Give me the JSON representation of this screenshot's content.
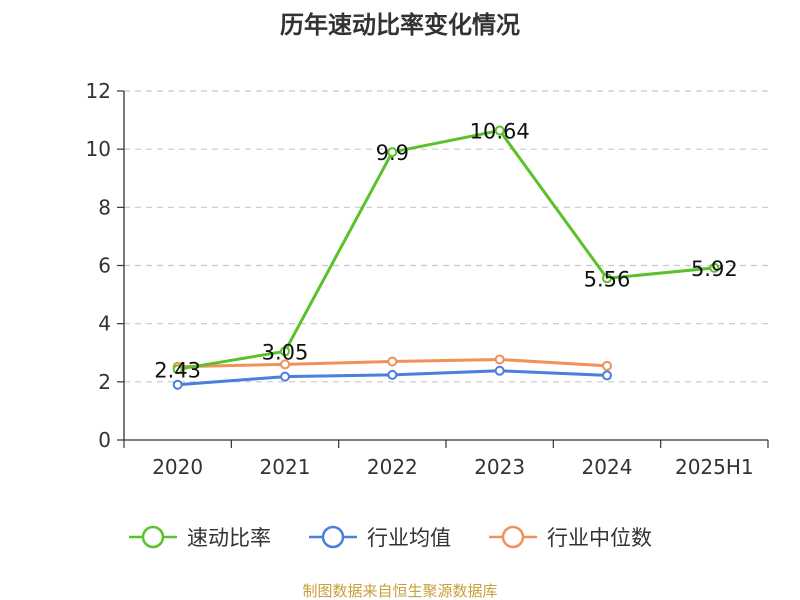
{
  "chart_data": {
    "type": "line",
    "title": "历年速动比率变化情况",
    "categories": [
      "2020",
      "2021",
      "2022",
      "2023",
      "2024",
      "2025H1"
    ],
    "ylim": [
      0,
      12
    ],
    "yticks": [
      "0",
      "2",
      "4",
      "6",
      "8",
      "10",
      "12"
    ],
    "grid": true,
    "legend_position": "bottom",
    "series": [
      {
        "name": "速动比率",
        "color": "#5ac12a",
        "values": [
          2.43,
          3.05,
          9.9,
          10.64,
          5.56,
          5.92
        ],
        "labels": [
          "2.43",
          "3.05",
          "9.9",
          "10.64",
          "5.56",
          "5.92"
        ]
      },
      {
        "name": "行业均值",
        "color": "#4a7fdc",
        "values": [
          1.9,
          2.18,
          2.24,
          2.38,
          2.22,
          null
        ]
      },
      {
        "name": "行业中位数",
        "color": "#f0915a",
        "values": [
          2.52,
          2.6,
          2.7,
          2.77,
          2.55,
          null
        ]
      }
    ]
  },
  "footer": {
    "source": "制图数据来自恒生聚源数据库"
  }
}
